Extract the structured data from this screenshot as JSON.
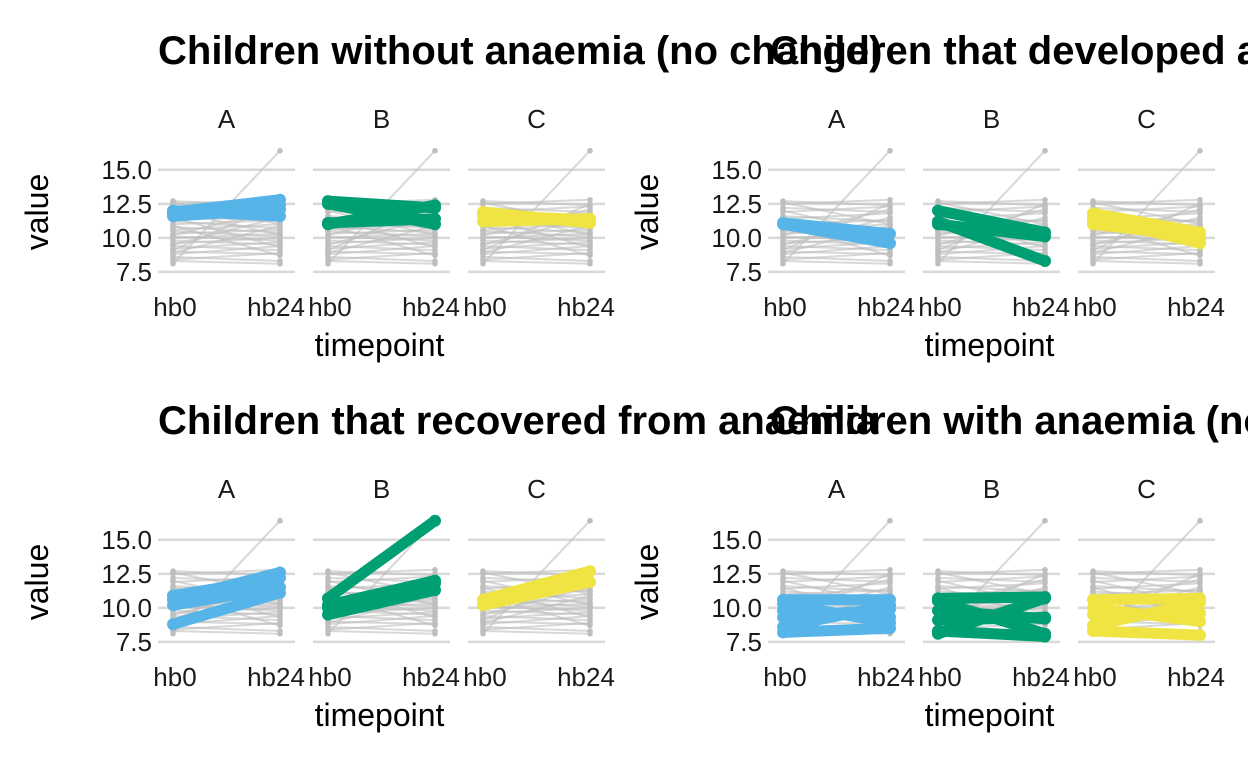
{
  "chart_data": [
    {
      "type": "line",
      "title": "Children without anaemia (no change)",
      "xlabel": "timepoint",
      "ylabel": "value",
      "x_ticks": [
        "hb0",
        "hb24"
      ],
      "y_ticks": [
        "7.5",
        "10.0",
        "12.5",
        "15.0"
      ],
      "ylim": [
        7.2,
        16.6
      ],
      "panels": [
        {
          "label": "A",
          "color": "#56B4E9",
          "highlight": [
            [
              11.9,
              12.8
            ],
            [
              11.8,
              12.4
            ],
            [
              12.0,
              11.6
            ],
            [
              11.6,
              12.1
            ]
          ]
        },
        {
          "label": "B",
          "color": "#009E73",
          "highlight": [
            [
              12.7,
              12.2
            ],
            [
              11.1,
              11.4
            ],
            [
              12.5,
              11.0
            ],
            [
              11.0,
              12.4
            ]
          ]
        },
        {
          "label": "C",
          "color": "#F0E442",
          "highlight": [
            [
              11.7,
              11.3
            ],
            [
              11.2,
              11.4
            ],
            [
              11.9,
              11.1
            ]
          ]
        }
      ]
    },
    {
      "type": "line",
      "title": "Children that developed anaemia",
      "xlabel": "timepoint",
      "ylabel": "value",
      "x_ticks": [
        "hb0",
        "hb24"
      ],
      "y_ticks": [
        "7.5",
        "10.0",
        "12.5",
        "15.0"
      ],
      "ylim": [
        7.2,
        16.6
      ],
      "panels": [
        {
          "label": "A",
          "color": "#56B4E9",
          "highlight": [
            [
              11.1,
              10.3
            ],
            [
              11.0,
              9.6
            ]
          ]
        },
        {
          "label": "B",
          "color": "#009E73",
          "highlight": [
            [
              12.0,
              10.4
            ],
            [
              11.2,
              8.3
            ],
            [
              11.0,
              10.1
            ]
          ]
        },
        {
          "label": "C",
          "color": "#F0E442",
          "highlight": [
            [
              11.8,
              10.4
            ],
            [
              11.5,
              9.6
            ],
            [
              11.0,
              10.1
            ],
            [
              11.3,
              9.9
            ]
          ]
        }
      ]
    },
    {
      "type": "line",
      "title": "Children that recovered from anaemia",
      "xlabel": "timepoint",
      "ylabel": "value",
      "x_ticks": [
        "hb0",
        "hb24"
      ],
      "y_ticks": [
        "7.5",
        "10.0",
        "12.5",
        "15.0"
      ],
      "ylim": [
        7.2,
        16.6
      ],
      "panels": [
        {
          "label": "A",
          "color": "#56B4E9",
          "highlight": [
            [
              10.6,
              12.6
            ],
            [
              10.2,
              11.5
            ],
            [
              8.8,
              11.1
            ],
            [
              10.9,
              12.2
            ]
          ]
        },
        {
          "label": "B",
          "color": "#009E73",
          "highlight": [
            [
              10.7,
              16.4
            ],
            [
              10.2,
              12.0
            ],
            [
              9.5,
              11.3
            ],
            [
              10.0,
              11.8
            ]
          ]
        },
        {
          "label": "C",
          "color": "#F0E442",
          "highlight": [
            [
              10.6,
              12.7
            ],
            [
              10.2,
              11.9
            ]
          ]
        }
      ]
    },
    {
      "type": "line",
      "title": "Children with anaemia (no change)",
      "xlabel": "timepoint",
      "ylabel": "value",
      "x_ticks": [
        "hb0",
        "hb24"
      ],
      "y_ticks": [
        "7.5",
        "10.0",
        "12.5",
        "15.0"
      ],
      "ylim": [
        7.2,
        16.6
      ],
      "panels": [
        {
          "label": "A",
          "color": "#56B4E9",
          "highlight": [
            [
              10.6,
              10.6
            ],
            [
              8.2,
              8.5
            ],
            [
              9.8,
              9.3
            ],
            [
              8.6,
              10.2
            ],
            [
              10.3,
              8.9
            ],
            [
              9.3,
              9.9
            ]
          ]
        },
        {
          "label": "B",
          "color": "#009E73",
          "highlight": [
            [
              10.7,
              10.8
            ],
            [
              8.3,
              7.9
            ],
            [
              10.5,
              8.1
            ],
            [
              8.1,
              10.7
            ],
            [
              9.1,
              9.3
            ],
            [
              9.8,
              9.2
            ]
          ]
        },
        {
          "label": "C",
          "color": "#F0E442",
          "highlight": [
            [
              10.6,
              10.7
            ],
            [
              8.3,
              8.0
            ],
            [
              9.5,
              9.6
            ],
            [
              10.0,
              9.0
            ],
            [
              8.7,
              10.4
            ]
          ]
        }
      ]
    }
  ],
  "background_series": {
    "color": "#BEBEBE",
    "pairs": [
      [
        8.1,
        16.4
      ],
      [
        12.7,
        12.4
      ],
      [
        12.5,
        12.8
      ],
      [
        12.2,
        11.9
      ],
      [
        11.9,
        12.3
      ],
      [
        11.6,
        11.2
      ],
      [
        11.4,
        11.8
      ],
      [
        11.2,
        10.7
      ],
      [
        11.0,
        11.3
      ],
      [
        10.8,
        10.4
      ],
      [
        10.6,
        11.0
      ],
      [
        10.5,
        10.1
      ],
      [
        10.3,
        10.6
      ],
      [
        10.1,
        9.8
      ],
      [
        10.0,
        10.3
      ],
      [
        9.8,
        9.5
      ],
      [
        9.6,
        10.0
      ],
      [
        9.4,
        9.1
      ],
      [
        9.2,
        9.7
      ],
      [
        9.0,
        8.8
      ],
      [
        8.8,
        9.4
      ],
      [
        8.6,
        8.3
      ],
      [
        8.4,
        8.9
      ],
      [
        8.3,
        8.1
      ],
      [
        12.0,
        10.2
      ],
      [
        10.2,
        12.1
      ],
      [
        9.5,
        11.5
      ],
      [
        11.5,
        9.3
      ],
      [
        8.9,
        10.9
      ],
      [
        10.9,
        8.7
      ],
      [
        12.6,
        11.0
      ],
      [
        9.1,
        12.5
      ]
    ]
  }
}
